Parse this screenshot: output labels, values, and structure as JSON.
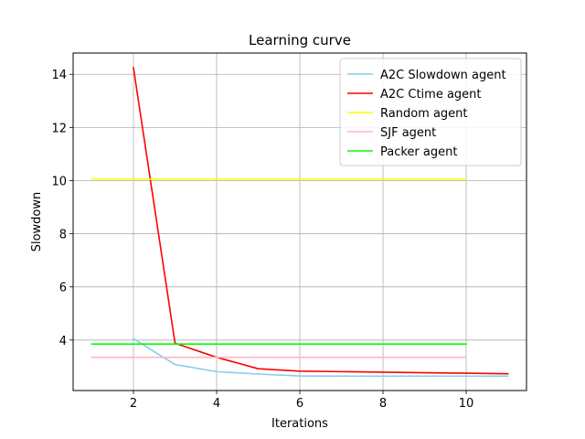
{
  "chart_data": {
    "type": "line",
    "title": "Learning curve",
    "xlabel": "Iterations",
    "ylabel": "Slowdown",
    "xlim": [
      0.55,
      11.45
    ],
    "ylim": [
      2.1,
      14.8
    ],
    "xticks": [
      2,
      4,
      6,
      8,
      10
    ],
    "yticks": [
      4,
      6,
      8,
      10,
      12,
      14
    ],
    "grid": true,
    "legend_position": "top-right",
    "series": [
      {
        "name": "A2C Slowdown agent",
        "color": "#87ceeb",
        "x": [
          2,
          3,
          4,
          5,
          6,
          7,
          8,
          9,
          10,
          11
        ],
        "y": [
          4.05,
          3.08,
          2.81,
          2.72,
          2.65,
          2.64,
          2.64,
          2.64,
          2.64,
          2.64
        ]
      },
      {
        "name": "A2C Ctime agent",
        "color": "#ff0000",
        "x": [
          2,
          3,
          4,
          5,
          6,
          7,
          8,
          9,
          10,
          11
        ],
        "y": [
          14.25,
          3.88,
          3.35,
          2.92,
          2.83,
          2.81,
          2.79,
          2.77,
          2.75,
          2.73
        ]
      },
      {
        "name": "Random agent",
        "color": "#ffff00",
        "x": [
          1,
          2,
          3,
          4,
          5,
          6,
          7,
          8,
          9,
          10
        ],
        "y": [
          10.05,
          10.05,
          10.05,
          10.05,
          10.05,
          10.05,
          10.05,
          10.05,
          10.05,
          10.05
        ]
      },
      {
        "name": "SJF agent",
        "color": "#ffb6c1",
        "x": [
          1,
          2,
          3,
          4,
          5,
          6,
          7,
          8,
          9,
          10
        ],
        "y": [
          3.35,
          3.35,
          3.35,
          3.35,
          3.35,
          3.35,
          3.35,
          3.35,
          3.35,
          3.35
        ]
      },
      {
        "name": "Packer agent",
        "color": "#00ff00",
        "x": [
          1,
          2,
          3,
          4,
          5,
          6,
          7,
          8,
          9,
          10
        ],
        "y": [
          3.85,
          3.85,
          3.85,
          3.85,
          3.85,
          3.85,
          3.85,
          3.85,
          3.85,
          3.85
        ]
      }
    ]
  }
}
